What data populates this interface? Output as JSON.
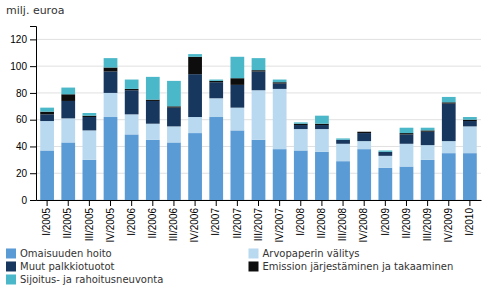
{
  "chart_data": {
    "type": "bar",
    "stacked": true,
    "ylabel": "milj. euroa",
    "categories": [
      "I/2005",
      "II/2005",
      "III/2005",
      "IV/2005",
      "I/2006",
      "II/2006",
      "III/2006",
      "IV/2006",
      "I/2007",
      "II/2007",
      "III/2007",
      "IV/2007",
      "I/2008",
      "II/2008",
      "III/2008",
      "IV/2008",
      "I/2009",
      "II/2009",
      "III/2009",
      "IV/2009",
      "I/2010"
    ],
    "series": [
      {
        "name": "Omaisuuden hoito",
        "color": "#5b9bd5",
        "values": [
          37,
          43,
          30,
          62,
          49,
          45,
          43,
          50,
          62,
          52,
          45,
          38,
          37,
          36,
          29,
          38,
          24,
          25,
          30,
          35,
          35
        ]
      },
      {
        "name": "Arvopaperin välitys",
        "color": "#b8d9f0",
        "values": [
          22,
          18,
          22,
          18,
          15,
          12,
          12,
          12,
          14,
          17,
          37,
          45,
          16,
          17,
          13,
          6,
          9,
          17,
          11,
          9,
          20
        ]
      },
      {
        "name": "Muut palkkiotuotot",
        "color": "#17375e",
        "values": [
          5,
          13,
          10,
          16,
          18,
          17,
          14,
          32,
          12,
          17,
          14,
          4,
          3,
          3,
          3,
          6,
          3,
          7,
          10,
          28,
          4
        ]
      },
      {
        "name": "Emission järjestäminen ja takaaminen",
        "color": "#0d0d0d",
        "values": [
          2,
          5,
          1,
          3,
          1,
          1,
          1,
          13,
          1,
          5,
          1,
          1,
          1,
          1,
          0,
          1,
          0,
          1,
          1,
          1,
          1
        ]
      },
      {
        "name": "Sijoitus- ja rahoitusneuvonta",
        "color": "#4ab8c8",
        "values": [
          3,
          5,
          2,
          7,
          7,
          17,
          19,
          2,
          1,
          16,
          9,
          2,
          1,
          6,
          1,
          0,
          1,
          4,
          2,
          4,
          2
        ]
      }
    ],
    "ylim": [
      0,
      130
    ],
    "yticks": [
      0,
      20,
      40,
      60,
      80,
      100,
      120
    ],
    "grid": true,
    "legend": "bottom"
  }
}
